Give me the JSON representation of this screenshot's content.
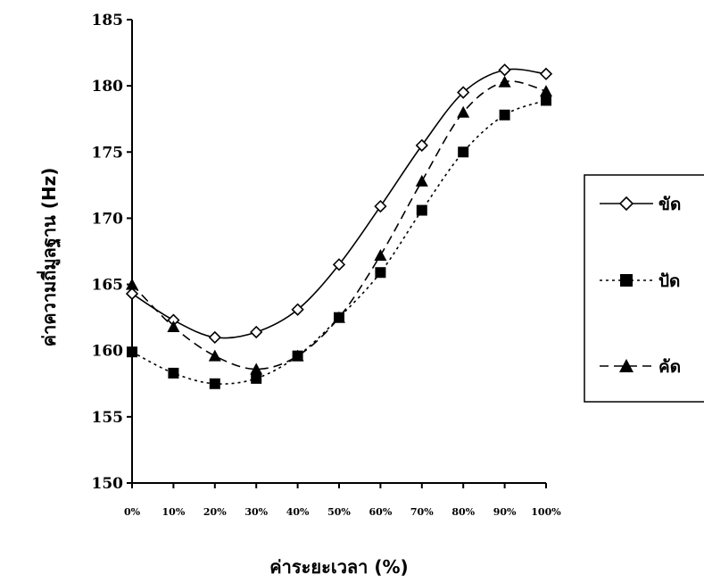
{
  "chart_data": {
    "type": "line",
    "title": "",
    "xlabel": "ค่าระยะเวลา (%)",
    "ylabel": "ค่าความถี่มูลฐาน (Hz)",
    "ylim": [
      150,
      185
    ],
    "y_ticks": [
      150,
      155,
      160,
      165,
      170,
      175,
      180,
      185
    ],
    "categories": [
      "0%",
      "10%",
      "20%",
      "30%",
      "40%",
      "50%",
      "60%",
      "70%",
      "80%",
      "90%",
      "100%"
    ],
    "grid": false,
    "legend_position": "right",
    "series": [
      {
        "name": "ขัด",
        "marker": "diamond",
        "line": "solid",
        "color": "#000000",
        "values": [
          164.3,
          162.3,
          161.0,
          161.4,
          163.1,
          166.5,
          170.9,
          175.5,
          179.5,
          181.2,
          180.9
        ]
      },
      {
        "name": "ปัด",
        "marker": "square",
        "line": "dotted",
        "color": "#000000",
        "values": [
          159.9,
          158.3,
          157.5,
          157.9,
          159.6,
          162.5,
          165.9,
          170.6,
          175.0,
          177.8,
          178.9
        ]
      },
      {
        "name": "คัด",
        "marker": "triangle",
        "line": "dashed",
        "color": "#000000",
        "values": [
          165.0,
          161.8,
          159.6,
          158.6,
          159.6,
          162.5,
          167.2,
          172.8,
          178.0,
          180.3,
          179.6
        ]
      }
    ]
  }
}
